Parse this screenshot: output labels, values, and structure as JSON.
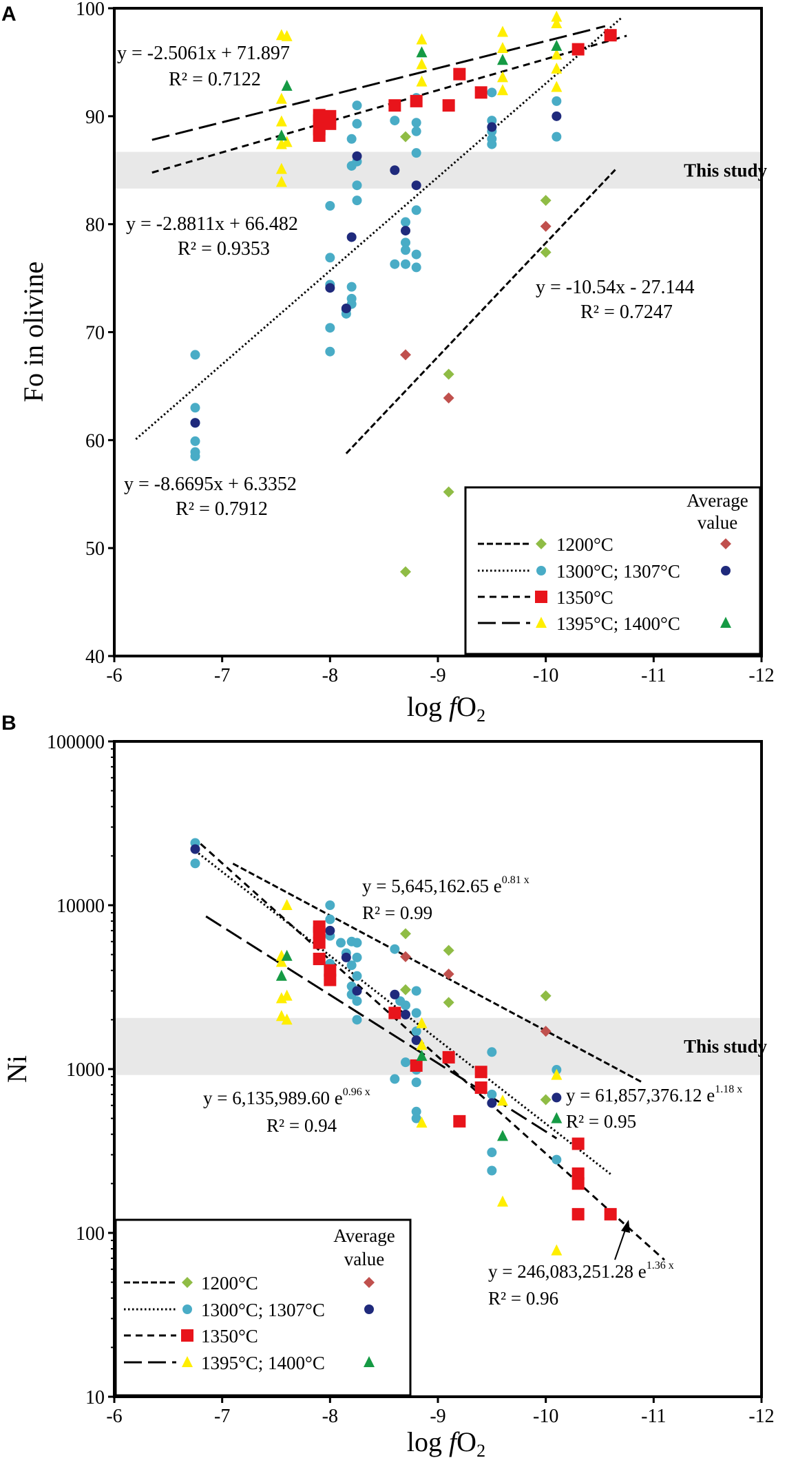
{
  "colors": {
    "c1200": "#8fbc45",
    "c1200avg": "#c0504d",
    "c1300": "#49acc6",
    "c1307": "#1f2a7c",
    "c1350": "#e8141b",
    "c1395": "#ffee00",
    "c1400": "#159a44",
    "band": "#e8e8e8"
  },
  "chart_data": [
    {
      "type": "scatter",
      "panel_label": "A",
      "xlabel_prefix": "log ",
      "xlabel_f": "f",
      "xlabel_main": "O",
      "xlabel_sub": "2",
      "ylabel": "Fo in olivine",
      "xlim": [
        -6,
        -12
      ],
      "ylim": [
        40,
        100
      ],
      "yscale": "linear",
      "xticks": [
        "-6",
        "-7",
        "-8",
        "-9",
        "-10",
        "-11",
        "-12"
      ],
      "yticks": [
        "40",
        "50",
        "60",
        "70",
        "80",
        "90",
        "100"
      ],
      "band": {
        "label": "This study",
        "range": [
          83.3,
          86.7
        ]
      },
      "series": [
        {
          "name": "1200°C",
          "marker": "diamond",
          "color_key": "c1200",
          "points": [
            [
              -8.7,
              88.1
            ],
            [
              -8.7,
              47.8
            ],
            [
              -9.1,
              66.1
            ],
            [
              -9.1,
              55.2
            ],
            [
              -10.0,
              82.2
            ],
            [
              -10.0,
              77.4
            ]
          ]
        },
        {
          "name": "1200°C average",
          "marker": "diamond",
          "color_key": "c1200avg",
          "points": [
            [
              -8.7,
              67.9
            ],
            [
              -9.1,
              63.9
            ],
            [
              -10.0,
              79.8
            ]
          ]
        },
        {
          "name": "1300°C",
          "marker": "circle",
          "color_key": "c1300",
          "points": [
            [
              -6.75,
              67.9
            ],
            [
              -6.75,
              63.0
            ],
            [
              -6.75,
              61.6
            ],
            [
              -6.75,
              59.9
            ],
            [
              -6.75,
              58.9
            ],
            [
              -6.75,
              58.5
            ],
            [
              -8.0,
              81.7
            ],
            [
              -8.0,
              76.9
            ],
            [
              -8.0,
              74.4
            ],
            [
              -8.0,
              70.4
            ],
            [
              -8.0,
              68.2
            ],
            [
              -8.15,
              72.1
            ],
            [
              -8.15,
              71.7
            ],
            [
              -8.2,
              74.2
            ],
            [
              -8.2,
              73.1
            ],
            [
              -8.2,
              72.6
            ],
            [
              -8.2,
              85.4
            ],
            [
              -8.2,
              87.9
            ],
            [
              -8.25,
              91.0
            ],
            [
              -8.25,
              89.3
            ],
            [
              -8.25,
              85.8
            ],
            [
              -8.25,
              83.6
            ],
            [
              -8.25,
              82.2
            ],
            [
              -8.6,
              89.6
            ],
            [
              -8.6,
              76.3
            ],
            [
              -8.7,
              80.2
            ],
            [
              -8.7,
              78.3
            ],
            [
              -8.7,
              77.6
            ],
            [
              -8.7,
              76.3
            ],
            [
              -8.8,
              91.7
            ],
            [
              -8.8,
              89.4
            ],
            [
              -8.8,
              88.6
            ],
            [
              -8.8,
              86.6
            ],
            [
              -8.8,
              81.3
            ],
            [
              -8.8,
              77.2
            ],
            [
              -8.8,
              76.0
            ],
            [
              -9.5,
              89.6
            ],
            [
              -9.5,
              88.6
            ],
            [
              -9.5,
              87.9
            ],
            [
              -9.5,
              87.4
            ],
            [
              -9.5,
              92.2
            ],
            [
              -10.1,
              91.4
            ],
            [
              -10.1,
              88.1
            ]
          ]
        },
        {
          "name": "1307°C",
          "marker": "circle",
          "color_key": "c1307",
          "points": [
            [
              -6.75,
              61.6
            ],
            [
              -8.0,
              74.1
            ],
            [
              -8.15,
              72.2
            ],
            [
              -8.2,
              78.8
            ],
            [
              -8.25,
              86.3
            ],
            [
              -8.6,
              85.0
            ],
            [
              -8.7,
              79.4
            ],
            [
              -8.8,
              83.6
            ],
            [
              -9.5,
              89.0
            ],
            [
              -10.1,
              90.0
            ]
          ]
        },
        {
          "name": "1350°C",
          "marker": "square",
          "color_key": "c1350",
          "points": [
            [
              -7.9,
              90.1
            ],
            [
              -7.9,
              89.6
            ],
            [
              -7.9,
              88.8
            ],
            [
              -7.9,
              88.2
            ],
            [
              -8.0,
              90.0
            ],
            [
              -8.0,
              89.3
            ],
            [
              -8.6,
              91.0
            ],
            [
              -8.8,
              91.4
            ],
            [
              -9.1,
              91.0
            ],
            [
              -9.2,
              93.9
            ],
            [
              -9.4,
              92.2
            ],
            [
              -10.3,
              96.2
            ],
            [
              -10.6,
              97.5
            ]
          ]
        },
        {
          "name": "1395°C",
          "marker": "triangle",
          "color_key": "c1395",
          "points": [
            [
              -7.55,
              97.5
            ],
            [
              -7.55,
              91.6
            ],
            [
              -7.55,
              89.5
            ],
            [
              -7.55,
              87.4
            ],
            [
              -7.55,
              85.1
            ],
            [
              -7.55,
              83.9
            ],
            [
              -7.6,
              97.4
            ],
            [
              -7.6,
              87.6
            ],
            [
              -8.85,
              97.1
            ],
            [
              -8.85,
              94.8
            ],
            [
              -8.85,
              93.2
            ],
            [
              -9.6,
              97.8
            ],
            [
              -9.6,
              96.3
            ],
            [
              -9.6,
              93.6
            ],
            [
              -9.6,
              92.4
            ],
            [
              -10.1,
              99.2
            ],
            [
              -10.1,
              98.6
            ],
            [
              -10.1,
              95.7
            ],
            [
              -10.1,
              94.4
            ],
            [
              -10.1,
              92.7
            ]
          ]
        },
        {
          "name": "1400°C",
          "marker": "triangle",
          "color_key": "c1400",
          "points": [
            [
              -7.6,
              92.8
            ],
            [
              -7.55,
              88.2
            ],
            [
              -8.85,
              95.9
            ],
            [
              -9.6,
              95.2
            ],
            [
              -10.1,
              96.5
            ]
          ]
        }
      ],
      "fits": [
        {
          "name": "1200°C",
          "style": "dashed",
          "from": -8.15,
          "to": -10.65,
          "slope": -10.54,
          "intercept": -27.144,
          "eq": "y = -10.54x - 27.144",
          "r2": "R² = 0.7247"
        },
        {
          "name": "1300°C",
          "style": "dotted",
          "from": -6.2,
          "to": -10.7,
          "slope": -8.6695,
          "intercept": 6.3352,
          "eq": "y = -8.6695x + 6.3352",
          "r2": "R² = 0.7912"
        },
        {
          "name": "1350°C",
          "style": "shortdash",
          "from": -6.35,
          "to": -10.75,
          "slope": -2.8811,
          "intercept": 66.482,
          "eq": "y = -2.8811x + 66.482",
          "r2": "R² = 0.9353"
        },
        {
          "name": "1395°C",
          "style": "longdash",
          "from": -6.35,
          "to": -10.55,
          "slope": -2.5061,
          "intercept": 71.897,
          "eq": "y = -2.5061x + 71.897",
          "r2": "R² = 0.7122"
        }
      ],
      "legend": {
        "placement": "bottom-right",
        "header_line1": "Average",
        "header_line2": "value",
        "entries": [
          "1200°C",
          "1300°C; 1307°C",
          "1350°C",
          "1395°C; 1400°C"
        ]
      }
    },
    {
      "type": "scatter",
      "panel_label": "B",
      "xlabel_prefix": "log ",
      "xlabel_f": "f",
      "xlabel_main": "O",
      "xlabel_sub": "2",
      "ylabel": "Ni",
      "xlim": [
        -6,
        -12
      ],
      "ylim": [
        10,
        100000
      ],
      "yscale": "log",
      "xticks": [
        "-6",
        "-7",
        "-8",
        "-9",
        "-10",
        "-11",
        "-12"
      ],
      "yticks": [
        "10",
        "100",
        "1000",
        "10000",
        "100000"
      ],
      "band": {
        "label": "This study",
        "range": [
          920,
          2050
        ]
      },
      "series": [
        {
          "name": "1200°C",
          "marker": "diamond",
          "color_key": "c1200",
          "points": [
            [
              -8.7,
              6700
            ],
            [
              -8.7,
              3050
            ],
            [
              -9.1,
              5300
            ],
            [
              -9.1,
              2550
            ],
            [
              -10.0,
              2800
            ],
            [
              -10.0,
              650
            ]
          ]
        },
        {
          "name": "1200°C average",
          "marker": "diamond",
          "color_key": "c1200avg",
          "points": [
            [
              -8.7,
              4850
            ],
            [
              -9.1,
              3800
            ],
            [
              -10.0,
              1700
            ]
          ]
        },
        {
          "name": "1300°C",
          "marker": "circle",
          "color_key": "c1300",
          "points": [
            [
              -6.75,
              24000
            ],
            [
              -6.75,
              18000
            ],
            [
              -8.0,
              10000
            ],
            [
              -8.0,
              8200
            ],
            [
              -8.0,
              6500
            ],
            [
              -8.0,
              4400
            ],
            [
              -8.1,
              5900
            ],
            [
              -8.15,
              5100
            ],
            [
              -8.2,
              6000
            ],
            [
              -8.2,
              4300
            ],
            [
              -8.2,
              3200
            ],
            [
              -8.2,
              2850
            ],
            [
              -8.25,
              5900
            ],
            [
              -8.25,
              4800
            ],
            [
              -8.25,
              3700
            ],
            [
              -8.25,
              2600
            ],
            [
              -8.25,
              2000
            ],
            [
              -8.6,
              5400
            ],
            [
              -8.65,
              2600
            ],
            [
              -8.7,
              2450
            ],
            [
              -8.7,
              1100
            ],
            [
              -8.8,
              3000
            ],
            [
              -8.8,
              2200
            ],
            [
              -8.8,
              1700
            ],
            [
              -8.8,
              990
            ],
            [
              -8.8,
              830
            ],
            [
              -8.8,
              550
            ],
            [
              -8.8,
              500
            ],
            [
              -9.5,
              1270
            ],
            [
              -9.5,
              700
            ],
            [
              -9.5,
              310
            ],
            [
              -9.5,
              240
            ],
            [
              -10.1,
              990
            ],
            [
              -10.1,
              280
            ],
            [
              -8.6,
              870
            ]
          ]
        },
        {
          "name": "1307°C",
          "marker": "circle",
          "color_key": "c1307",
          "points": [
            [
              -6.75,
              22000
            ],
            [
              -8.0,
              7000
            ],
            [
              -8.15,
              4800
            ],
            [
              -8.25,
              3000
            ],
            [
              -8.6,
              2850
            ],
            [
              -8.7,
              2150
            ],
            [
              -8.8,
              1500
            ],
            [
              -9.5,
              620
            ],
            [
              -10.1,
              670
            ]
          ]
        },
        {
          "name": "1350°C",
          "marker": "square",
          "color_key": "c1350",
          "points": [
            [
              -7.9,
              7400
            ],
            [
              -7.9,
              6800
            ],
            [
              -7.9,
              5900
            ],
            [
              -7.9,
              4700
            ],
            [
              -8.0,
              4000
            ],
            [
              -8.0,
              3500
            ],
            [
              -8.6,
              2200
            ],
            [
              -8.8,
              1050
            ],
            [
              -9.1,
              1180
            ],
            [
              -9.2,
              480
            ],
            [
              -9.4,
              960
            ],
            [
              -9.4,
              770
            ],
            [
              -10.3,
              350
            ],
            [
              -10.3,
              230
            ],
            [
              -10.3,
              200
            ],
            [
              -10.3,
              130
            ],
            [
              -10.6,
              130
            ]
          ]
        },
        {
          "name": "1395°C",
          "marker": "triangle",
          "color_key": "c1395",
          "points": [
            [
              -7.55,
              4900
            ],
            [
              -7.55,
              4500
            ],
            [
              -7.55,
              2700
            ],
            [
              -7.55,
              2100
            ],
            [
              -7.6,
              10000
            ],
            [
              -7.6,
              2800
            ],
            [
              -7.6,
              2000
            ],
            [
              -8.85,
              1900
            ],
            [
              -8.85,
              1400
            ],
            [
              -8.85,
              470
            ],
            [
              -9.6,
              640
            ],
            [
              -9.6,
              155
            ],
            [
              -10.1,
              920
            ],
            [
              -10.1,
              78
            ]
          ]
        },
        {
          "name": "1400°C",
          "marker": "triangle",
          "color_key": "c1400",
          "points": [
            [
              -7.55,
              3700
            ],
            [
              -7.6,
              4900
            ],
            [
              -8.85,
              1200
            ],
            [
              -9.6,
              390
            ],
            [
              -10.1,
              500
            ]
          ]
        }
      ],
      "fits": [
        {
          "name": "1200°C",
          "style": "dashed",
          "from": -7.1,
          "to": -10.9,
          "a": 5645162.65,
          "b": 0.81,
          "eq_main": "y = 5,645,162.65 e",
          "eq_exp": "0.81 x",
          "r2": "R² = 0.99"
        },
        {
          "name": "1300°C",
          "style": "dotted",
          "from": -6.75,
          "to": -10.6,
          "a": 61857376.12,
          "b": 1.18,
          "eq_main": "y = 61,857,376.12 e",
          "eq_exp": "1.18 x",
          "r2": "R² = 0.95"
        },
        {
          "name": "1350°C",
          "style": "shortdash",
          "from": -6.8,
          "to": -11.1,
          "a": 246083251.28,
          "b": 1.36,
          "eq_main": "y = 246,083,251.28 e",
          "eq_exp": "1.36 x",
          "r2": "R² = 0.96"
        },
        {
          "name": "1395°C",
          "style": "longdash",
          "from": -6.85,
          "to": -10.1,
          "a": 6135989.6,
          "b": 0.96,
          "eq_main": "y = 6,135,989.60 e",
          "eq_exp": "0.96 x",
          "r2": "R² = 0.94"
        }
      ],
      "legend": {
        "placement": "bottom-left",
        "header_line1": "Average",
        "header_line2": "value",
        "entries": [
          "1200°C",
          "1300°C; 1307°C",
          "1350°C",
          "1395°C; 1400°C"
        ]
      }
    }
  ]
}
